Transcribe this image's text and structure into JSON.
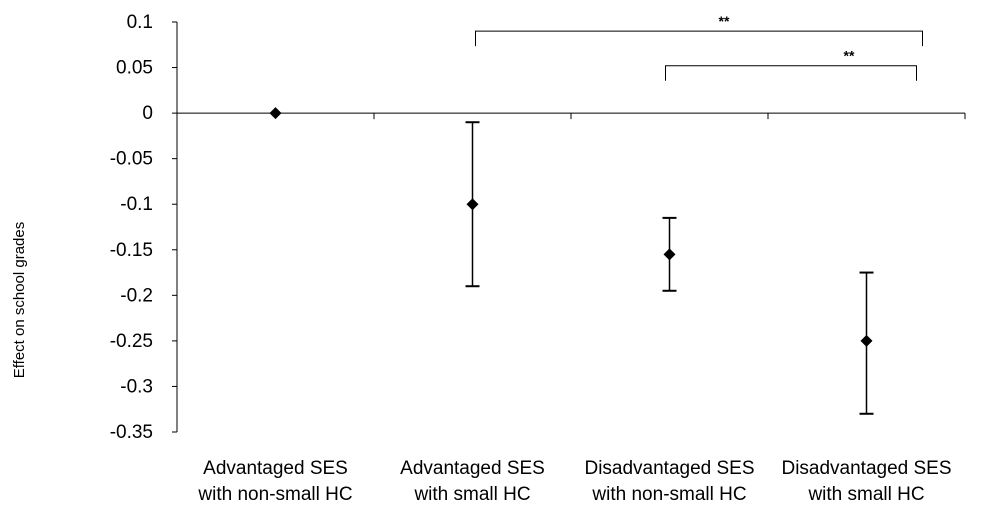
{
  "chart_data": {
    "type": "scatter",
    "title": "",
    "xlabel": "",
    "ylabel": "Effect on school grades",
    "ylim": [
      -0.35,
      0.1
    ],
    "yticks": [
      0.1,
      0.05,
      0,
      -0.05,
      -0.1,
      -0.15,
      -0.2,
      -0.25,
      -0.3,
      -0.35
    ],
    "ytick_labels": [
      "0.1",
      "0.05",
      "0",
      "-0.05",
      "-0.1",
      "-0.15",
      "-0.2",
      "-0.25",
      "-0.3",
      "-0.35"
    ],
    "categories": [
      [
        "Advantaged SES",
        "with non-small HC"
      ],
      [
        "Advantaged SES",
        "with small HC"
      ],
      [
        "Disadvantaged SES",
        "with non-small HC"
      ],
      [
        "Disadvantaged SES",
        "with small HC"
      ]
    ],
    "values": [
      0,
      -0.1,
      -0.155,
      -0.25
    ],
    "error_low": [
      null,
      -0.19,
      -0.195,
      -0.33
    ],
    "error_high": [
      null,
      -0.01,
      -0.115,
      -0.175
    ],
    "marker": "diamond",
    "marker_color": "#000000",
    "grid": false,
    "significance_brackets": [
      {
        "from": 1,
        "to": 3,
        "label": "**",
        "y": 0.09
      },
      {
        "from": 2,
        "to": 3,
        "label": "**",
        "y": 0.052
      }
    ]
  }
}
